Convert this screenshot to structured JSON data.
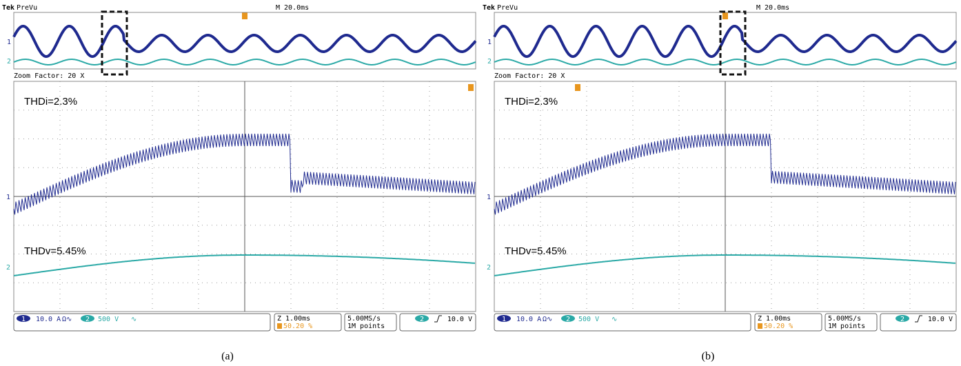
{
  "panels": [
    {
      "brand": "Tek",
      "mode": "PreVu",
      "timebase": "M 20.0ms",
      "zoom": "Zoom Factor: 20 X",
      "thd_i": "THDi=2.3%",
      "thd_v": "THDv=5.45%",
      "ch1": "1",
      "ch2": "2",
      "ch1_scale": "10.0 A",
      "ch1_flags": "Ω∿",
      "ch2_scale": "500 V",
      "ch2_flags": "∿",
      "zoom_time": "Z 1.00ms",
      "trigger_pos": "50.20 %",
      "sample_rate": "5.00MS/s",
      "record": "1M points",
      "trigger_ch": "2",
      "trigger_level": "10.0 V",
      "caption": "(a)"
    },
    {
      "brand": "Tek",
      "mode": "PreVu",
      "timebase": "M 20.0ms",
      "zoom": "Zoom Factor: 20 X",
      "thd_i": "THDi=2.3%",
      "thd_v": "THDv=5.45%",
      "ch1": "1",
      "ch2": "2",
      "ch1_scale": "10.0 A",
      "ch1_flags": "Ω∿",
      "ch2_scale": "500 V",
      "ch2_flags": "∿",
      "zoom_time": "Z 1.00ms",
      "trigger_pos": "50.20 %",
      "sample_rate": "5.00MS/s",
      "record": "1M points",
      "trigger_ch": "2",
      "trigger_level": "10.0 V",
      "caption": "(b)"
    }
  ]
}
